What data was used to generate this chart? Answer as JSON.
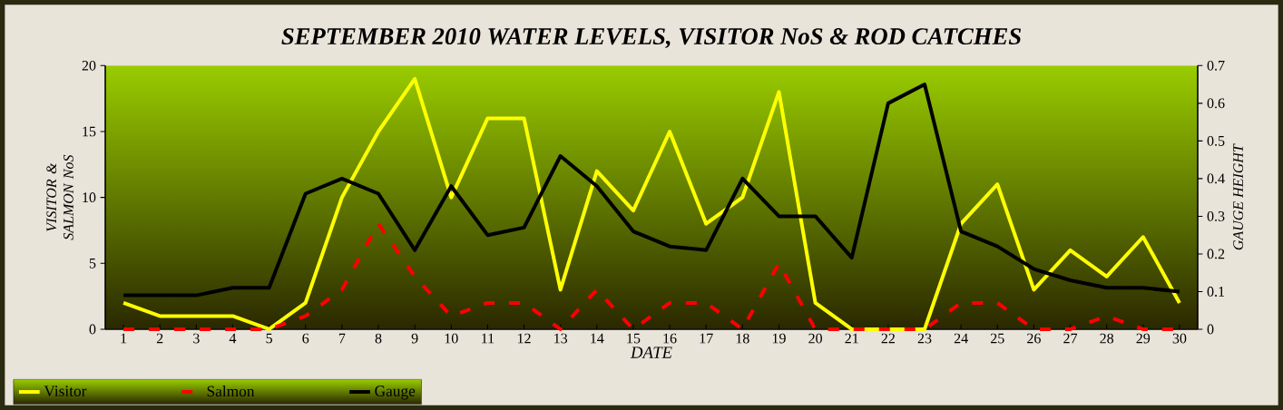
{
  "chart_data": {
    "type": "line",
    "title": "SEPTEMBER 2010 WATER LEVELS, VISITOR NoS & ROD CATCHES",
    "xlabel": "DATE",
    "ylabel": "VISITOR & SALMON NoS",
    "y2label": "GAUGE HEIGHT",
    "categories": [
      "1",
      "2",
      "3",
      "4",
      "5",
      "6",
      "7",
      "8",
      "9",
      "10",
      "11",
      "12",
      "13",
      "14",
      "15",
      "16",
      "17",
      "18",
      "19",
      "20",
      "21",
      "22",
      "23",
      "24",
      "25",
      "26",
      "27",
      "28",
      "29",
      "30"
    ],
    "series": [
      {
        "name": "Visitor",
        "color": "#ffff00",
        "line_style": "solid",
        "values": [
          2,
          1,
          1,
          1,
          0,
          2,
          10,
          15,
          19,
          10,
          16,
          16,
          3,
          12,
          9,
          15,
          8,
          10,
          18,
          2,
          0,
          0,
          0,
          8,
          11,
          3,
          6,
          4,
          7,
          2
        ]
      },
      {
        "name": "Salmon",
        "color": "#ff0000",
        "line_style": "dashed",
        "values": [
          0,
          0,
          0,
          0,
          0,
          1,
          3,
          8,
          4,
          1,
          2,
          2,
          0,
          3,
          0,
          2,
          2,
          0,
          5,
          0,
          0,
          0,
          0,
          2,
          2,
          0,
          0,
          1,
          0,
          0
        ]
      },
      {
        "name": "Gauge",
        "color": "#000000",
        "line_style": "solid",
        "axis": "y2",
        "values": [
          0.09,
          0.09,
          0.09,
          0.11,
          0.11,
          0.36,
          0.4,
          0.36,
          0.21,
          0.38,
          0.25,
          0.27,
          0.46,
          0.38,
          0.26,
          0.22,
          0.21,
          0.4,
          0.3,
          0.3,
          0.19,
          0.6,
          0.65,
          0.26,
          0.22,
          0.16,
          0.13,
          0.11,
          0.11,
          0.1
        ]
      }
    ],
    "ylim": [
      0,
      20
    ],
    "yticks": [
      0,
      5,
      10,
      15,
      20
    ],
    "y2lim": [
      0,
      0.7
    ],
    "y2ticks": [
      0,
      0.1,
      0.2,
      0.3,
      0.4,
      0.5,
      0.6,
      0.7
    ],
    "legend": "bottom left",
    "marker": "none"
  }
}
